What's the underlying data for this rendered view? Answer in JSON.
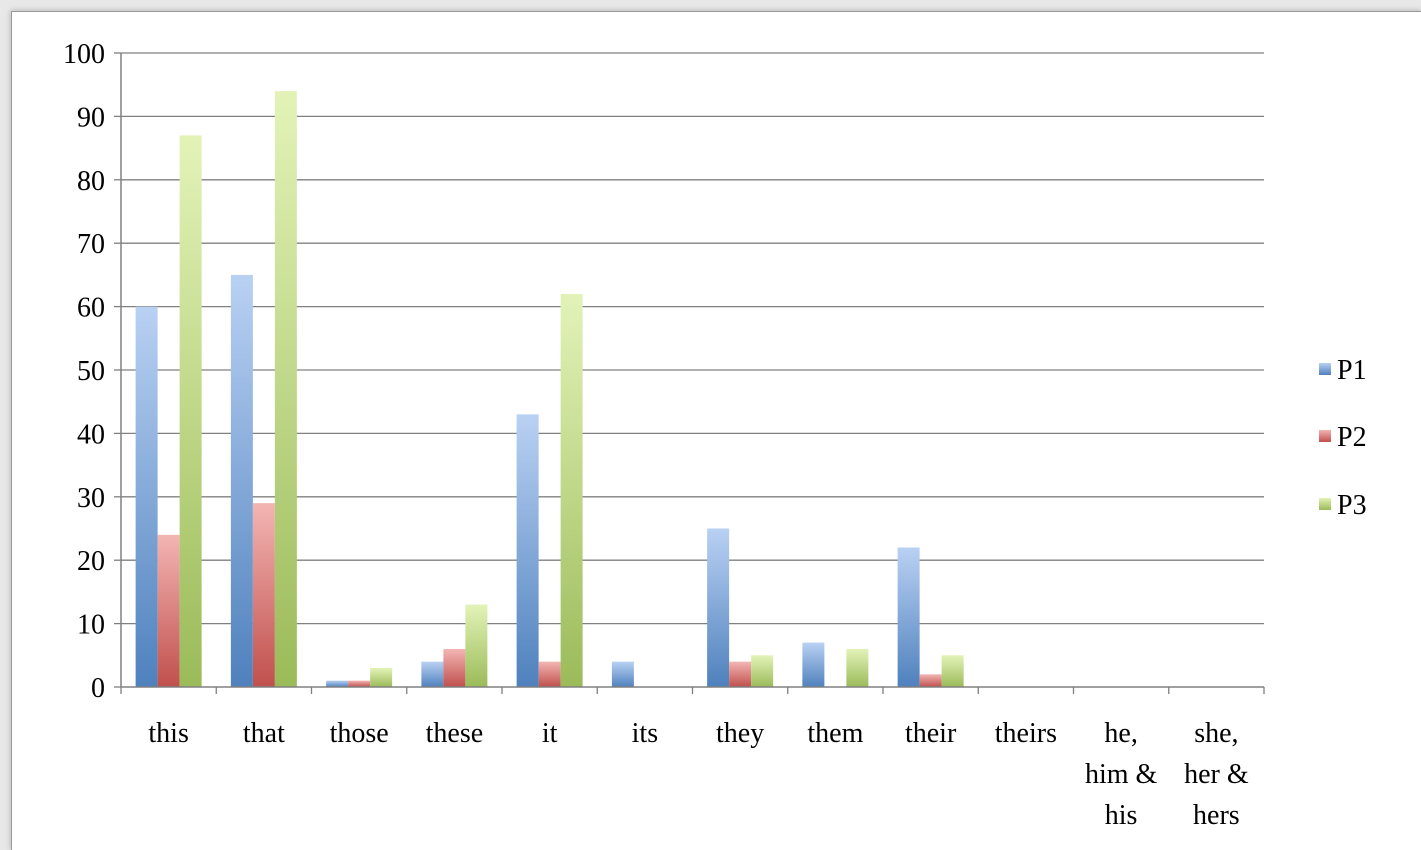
{
  "chart_data": {
    "type": "bar",
    "title": "",
    "xlabel": "",
    "ylabel": "",
    "ylim": [
      0,
      100
    ],
    "yticks": [
      0,
      10,
      20,
      30,
      40,
      50,
      60,
      70,
      80,
      90,
      100
    ],
    "grid": true,
    "legend_position": "right",
    "categories": [
      [
        "this"
      ],
      [
        "that"
      ],
      [
        "those"
      ],
      [
        "these"
      ],
      [
        "it"
      ],
      [
        "its"
      ],
      [
        "they"
      ],
      [
        "them"
      ],
      [
        "their"
      ],
      [
        "theirs"
      ],
      [
        "he,",
        "him &",
        "his"
      ],
      [
        "she,",
        "her &",
        "hers"
      ]
    ],
    "series": [
      {
        "name": "P1",
        "color": "#4f81bd",
        "light": "#b9d1f3",
        "values": [
          60,
          65,
          1,
          4,
          43,
          4,
          25,
          7,
          22,
          0,
          0,
          0
        ]
      },
      {
        "name": "P2",
        "color": "#c0504d",
        "light": "#f3b5b3",
        "values": [
          24,
          29,
          1,
          6,
          4,
          0,
          4,
          0,
          2,
          0,
          0,
          0
        ]
      },
      {
        "name": "P3",
        "color": "#9bbb59",
        "light": "#e3f3b8",
        "values": [
          87,
          94,
          3,
          13,
          62,
          0,
          5,
          6,
          5,
          0,
          0,
          0
        ]
      }
    ]
  }
}
